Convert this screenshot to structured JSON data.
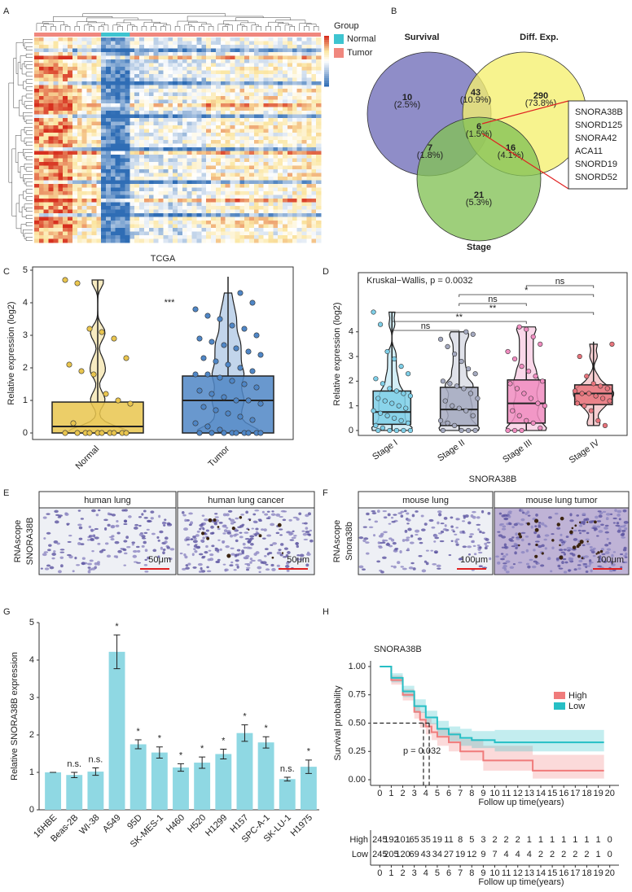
{
  "panels": [
    "A",
    "B",
    "C",
    "D",
    "E",
    "F",
    "G",
    "H"
  ],
  "heatmap": {
    "legend_title": "Group",
    "groups": [
      {
        "name": "Normal",
        "color": "#3ec4d0"
      },
      {
        "name": "Tumor",
        "color": "#f0877e"
      }
    ]
  },
  "venn": {
    "sets": [
      {
        "name": "Survival",
        "color": "#6f6db8"
      },
      {
        "name": "Diff. Exp.",
        "color": "#f5f06e"
      },
      {
        "name": "Stage",
        "color": "#83c156"
      }
    ],
    "regions": [
      {
        "count": "10",
        "percent": "(2.5%)"
      },
      {
        "count": "43",
        "percent": "(10.9%)"
      },
      {
        "count": "290",
        "percent": "(73.8%)"
      },
      {
        "count": "6",
        "percent": "(1.5%)"
      },
      {
        "count": "7",
        "percent": "(1.8%)"
      },
      {
        "count": "16",
        "percent": "(4.1%)"
      },
      {
        "count": "21",
        "percent": "(5.3%)"
      }
    ],
    "genes": [
      "SNORA38B",
      "SNORD125",
      "SNORA42",
      "ACA11",
      "SNORD19",
      "SNORD52"
    ]
  },
  "ihc": [
    {
      "title_left": "human lung",
      "title_right": "human lung cancer",
      "label": [
        "RNAscope",
        "SNORA38B"
      ],
      "scale": "50μm"
    },
    {
      "title_left": "mouse lung",
      "title_right": "mouse lung tumor",
      "label": [
        "RNAscope",
        "Snora38b"
      ],
      "scale": "100μm"
    }
  ],
  "chart_data": [
    {
      "type": "box",
      "title": "TCGA",
      "ylabel": "Relative expression (log2)",
      "annotation": "***",
      "categories": [
        "Normal",
        "Tumor"
      ],
      "colors": [
        "#e9c54e",
        "#4f86c6"
      ],
      "ylim": [
        -0.2,
        5.1
      ],
      "yticks": [
        0,
        1,
        2,
        3,
        4,
        5
      ],
      "boxes": [
        {
          "low": 0,
          "q1": 0,
          "median": 0.2,
          "q3": 0.95,
          "high": 4.7
        },
        {
          "low": 0,
          "q1": 0,
          "median": 1.0,
          "q3": 1.75,
          "high": 4.8
        }
      ],
      "points": [
        [
          4.7,
          4.6,
          3.2,
          3.1,
          2.9,
          2.3,
          2.1,
          1.9,
          1.8,
          1.2,
          1.0,
          0.9,
          0.3,
          0,
          0,
          0,
          0,
          0,
          0,
          0,
          0,
          0,
          0
        ],
        [
          4.3,
          4.0,
          3.8,
          3.6,
          3.5,
          3.3,
          3.2,
          3.0,
          2.9,
          2.8,
          2.7,
          2.6,
          2.5,
          2.4,
          2.3,
          2.2,
          2.1,
          2.0,
          1.9,
          1.8,
          1.8,
          1.7,
          1.6,
          1.5,
          1.4,
          1.3,
          1.2,
          1.1,
          1.0,
          1.0,
          0.9,
          0.8,
          0.7,
          0.6,
          0.5,
          0.4,
          0.3,
          0.2,
          0.1,
          0,
          0,
          0,
          0,
          0,
          0,
          0,
          0,
          0
        ]
      ]
    },
    {
      "type": "box",
      "ylabel": "Relative expression (log2)",
      "xlabel": "SNORA38B",
      "annotation": "Kruskal−Wallis, p = 0.0032",
      "categories": [
        "Stage I",
        "Stage II",
        "Stage III",
        "Stage IV"
      ],
      "colors": [
        "#7ecfe8",
        "#a4a9bf",
        "#f08cc0",
        "#e8747c"
      ],
      "ylim": [
        -0.2,
        6.4
      ],
      "yticks": [
        0,
        1,
        2,
        3,
        4
      ],
      "boxes": [
        {
          "low": 0,
          "q1": 0.25,
          "median": 0.75,
          "q3": 1.6,
          "high": 4.8
        },
        {
          "low": 0,
          "q1": 0.2,
          "median": 0.85,
          "q3": 1.75,
          "high": 4.0
        },
        {
          "low": 0,
          "q1": 0.3,
          "median": 1.1,
          "q3": 2.05,
          "high": 4.2
        },
        {
          "low": 0.2,
          "q1": 1.05,
          "median": 1.5,
          "q3": 1.85,
          "high": 3.6
        }
      ],
      "points": [
        [
          4.8,
          4.3,
          3.2,
          2.9,
          2.6,
          2.3,
          2.1,
          1.9,
          1.7,
          1.6,
          1.5,
          1.4,
          1.3,
          1.2,
          1.1,
          1.0,
          0.9,
          0.8,
          0.7,
          0.6,
          0.5,
          0.4,
          0.3,
          0.2,
          0.1,
          0,
          0,
          0,
          0,
          0
        ],
        [
          4.0,
          3.9,
          3.7,
          3.4,
          3.1,
          2.8,
          2.5,
          2.3,
          2.0,
          1.9,
          1.8,
          1.7,
          1.5,
          1.3,
          1.2,
          1.0,
          0.9,
          0.8,
          0.6,
          0.4,
          0.3,
          0.2,
          0,
          0,
          0,
          0
        ],
        [
          4.2,
          4.1,
          3.8,
          3.5,
          3.2,
          2.9,
          2.6,
          2.4,
          2.2,
          2.0,
          1.9,
          1.7,
          1.5,
          1.3,
          1.1,
          1.0,
          0.8,
          0.6,
          0.4,
          0.3,
          0.1,
          0,
          0,
          0
        ],
        [
          3.5,
          3.0,
          2.2,
          1.9,
          1.8,
          1.7,
          1.6,
          1.5,
          1.5,
          1.4,
          1.3,
          1.2,
          1.1,
          1.0,
          0.8,
          0.4,
          0.2
        ]
      ],
      "comparisons": [
        {
          "from": "Stage I",
          "to": "Stage II",
          "label": "ns"
        },
        {
          "from": "Stage I",
          "to": "Stage III",
          "label": "**"
        },
        {
          "from": "Stage I",
          "to": "Stage IV",
          "label": "**"
        },
        {
          "from": "Stage II",
          "to": "Stage III",
          "label": "ns"
        },
        {
          "from": "Stage II",
          "to": "Stage IV",
          "label": "*"
        },
        {
          "from": "Stage III",
          "to": "Stage IV",
          "label": "ns"
        }
      ]
    },
    {
      "type": "bar",
      "ylabel": "Relative SNORA38B expression",
      "color": "#8fd8e3",
      "categories": [
        "16HBE",
        "Beas-2B",
        "WI-38",
        "A549",
        "95D",
        "SK-MES-1",
        "H460",
        "H520",
        "H1299",
        "H157",
        "SPC-A-1",
        "SK-LU-1",
        "H1975"
      ],
      "values": [
        1.0,
        0.93,
        1.02,
        4.22,
        1.75,
        1.53,
        1.13,
        1.26,
        1.49,
        2.05,
        1.8,
        0.82,
        1.15
      ],
      "errors": [
        0,
        0.07,
        0.1,
        0.45,
        0.12,
        0.15,
        0.1,
        0.15,
        0.13,
        0.22,
        0.15,
        0.05,
        0.18
      ],
      "annotations": [
        null,
        "n.s.",
        "n.s.",
        "*",
        "*",
        "*",
        "*",
        "*",
        "*",
        "*",
        "*",
        "n.s.",
        "*"
      ],
      "ylim": [
        0,
        5
      ],
      "yticks": [
        0,
        1,
        2,
        3,
        4,
        5
      ]
    },
    {
      "type": "survival",
      "title": "SNORA38B",
      "ylabel": "Survival probability",
      "xlabel": "Follow up time(years)",
      "annotation": "p = 0.032",
      "ylim": [
        -0.05,
        1.05
      ],
      "yticks": [
        {
          "value": 0,
          "label": "0.00"
        },
        {
          "value": 0.25,
          "label": "0.25"
        },
        {
          "value": 0.5,
          "label": "0.50"
        },
        {
          "value": 0.75,
          "label": "0.75"
        },
        {
          "value": 1,
          "label": "1.00"
        }
      ],
      "xlim": [
        -0.8,
        20.8
      ],
      "xticks": [
        0,
        1,
        2,
        3,
        4,
        5,
        6,
        7,
        8,
        9,
        10,
        11,
        12,
        13,
        14,
        15,
        16,
        17,
        18,
        19,
        20
      ],
      "series": [
        {
          "name": "High",
          "color": "#f07b7b",
          "x": [
            0,
            1,
            2,
            3,
            3.5,
            4,
            4.5,
            5,
            6,
            7,
            9,
            13.3,
            19.5
          ],
          "values": [
            1,
            0.88,
            0.75,
            0.6,
            0.53,
            0.47,
            0.42,
            0.38,
            0.33,
            0.25,
            0.17,
            0.08,
            0.08
          ],
          "ci_low": [
            1,
            0.84,
            0.7,
            0.54,
            0.46,
            0.4,
            0.35,
            0.3,
            0.25,
            0.17,
            0.08,
            0.01,
            0.01
          ],
          "ci_high": [
            1,
            0.92,
            0.8,
            0.66,
            0.6,
            0.54,
            0.5,
            0.46,
            0.42,
            0.36,
            0.3,
            0.22,
            0.22
          ]
        },
        {
          "name": "Low",
          "color": "#26bfc5",
          "x": [
            0,
            1,
            2,
            3,
            4,
            5,
            6,
            7,
            8,
            10,
            19.5
          ],
          "values": [
            1,
            0.9,
            0.78,
            0.65,
            0.55,
            0.45,
            0.4,
            0.37,
            0.35,
            0.33,
            0.33
          ],
          "ci_low": [
            1,
            0.86,
            0.73,
            0.59,
            0.49,
            0.39,
            0.34,
            0.3,
            0.28,
            0.25,
            0.25
          ],
          "ci_high": [
            1,
            0.94,
            0.83,
            0.71,
            0.61,
            0.52,
            0.47,
            0.45,
            0.43,
            0.44,
            0.44
          ]
        }
      ],
      "median_survival": {
        "level": 0.5,
        "x": [
          3.8,
          4.3
        ]
      },
      "risk_table": [
        [
          245,
          192,
          101,
          65,
          35,
          19,
          11,
          8,
          5,
          3,
          2,
          2,
          2,
          1,
          1,
          1,
          1,
          1,
          1,
          1,
          0
        ],
        [
          245,
          205,
          120,
          69,
          43,
          34,
          27,
          19,
          12,
          9,
          7,
          4,
          4,
          4,
          2,
          2,
          2,
          2,
          2,
          1,
          0
        ]
      ]
    }
  ]
}
